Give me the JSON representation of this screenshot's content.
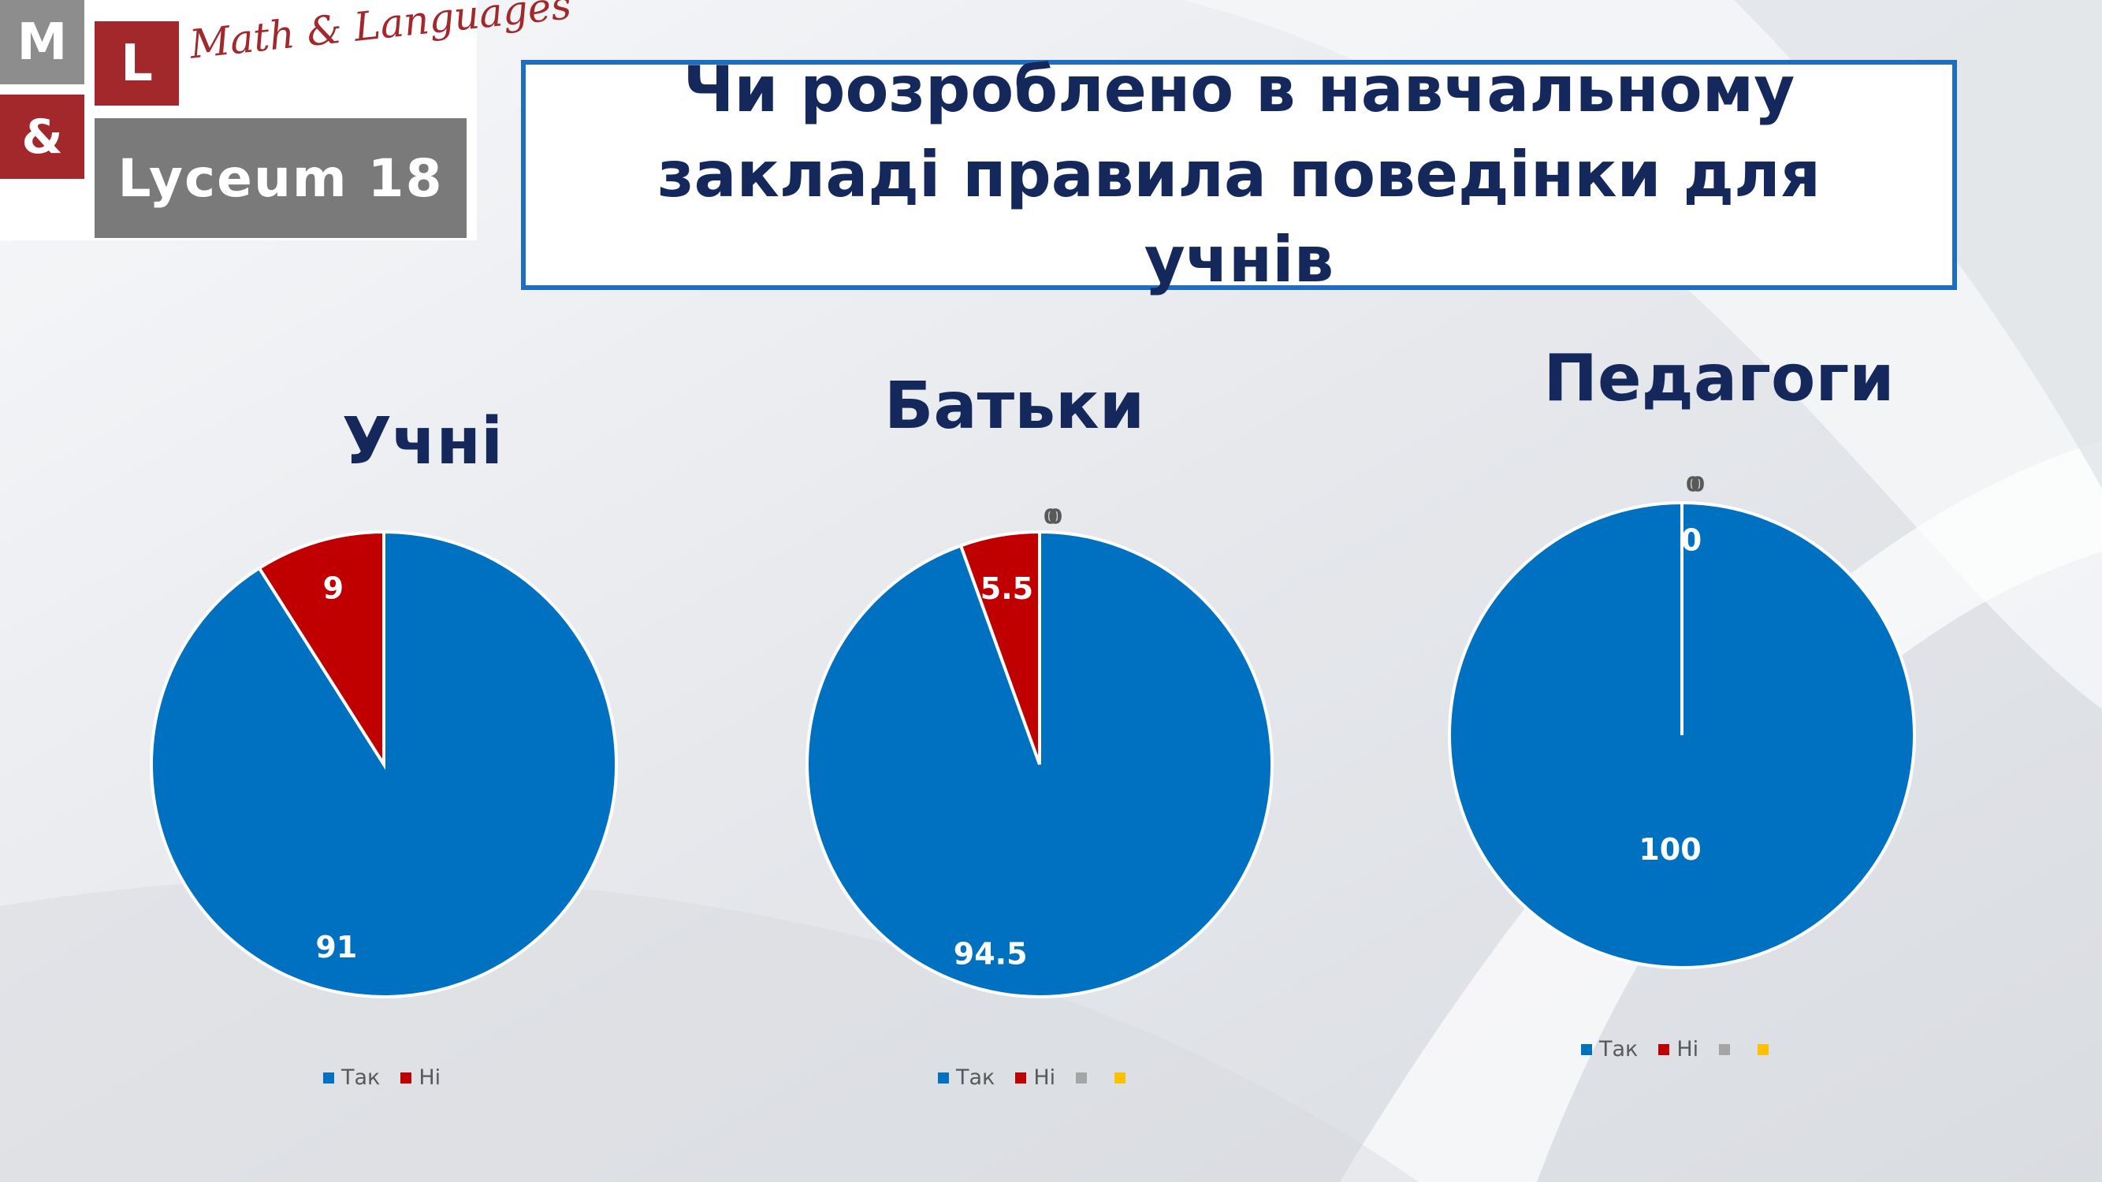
{
  "logo": {
    "m": "M",
    "l": "L",
    "amp": "&",
    "script": "Math & Languages",
    "lyceum": "Lyceum 18"
  },
  "title": "Чи розроблено в навчальному закладі правила поведінки для учнів",
  "colors": {
    "tak": "#0070c0",
    "ni": "#c00000",
    "third": "#a5a5a5",
    "fourth": "#ffc000",
    "title": "#14285c",
    "border": "#1c6fc0"
  },
  "chart_data": [
    {
      "type": "pie",
      "title": "Учні",
      "categories": [
        "Так",
        "Ні"
      ],
      "values": [
        91,
        9
      ],
      "labels": [
        "91",
        "9"
      ],
      "legend": [
        {
          "label": "Так",
          "color": "#0070c0"
        },
        {
          "label": "Ні",
          "color": "#c00000"
        }
      ]
    },
    {
      "type": "pie",
      "title": "Батьки",
      "categories": [
        "Так",
        "Ні",
        "",
        ""
      ],
      "values": [
        94.5,
        5.5,
        0,
        0
      ],
      "labels": [
        "94.5",
        "5.5",
        "0",
        "0"
      ],
      "legend": [
        {
          "label": "Так",
          "color": "#0070c0"
        },
        {
          "label": "Ні",
          "color": "#c00000"
        },
        {
          "label": "",
          "color": "#a5a5a5"
        },
        {
          "label": "",
          "color": "#ffc000"
        }
      ]
    },
    {
      "type": "pie",
      "title": "Педагоги",
      "categories": [
        "Так",
        "Ні",
        "",
        ""
      ],
      "values": [
        100,
        0,
        0,
        0
      ],
      "labels": [
        "100",
        "0",
        "0",
        "0"
      ],
      "legend": [
        {
          "label": "Так",
          "color": "#0070c0"
        },
        {
          "label": "Ні",
          "color": "#c00000"
        },
        {
          "label": "",
          "color": "#a5a5a5"
        },
        {
          "label": "",
          "color": "#ffc000"
        }
      ]
    }
  ]
}
